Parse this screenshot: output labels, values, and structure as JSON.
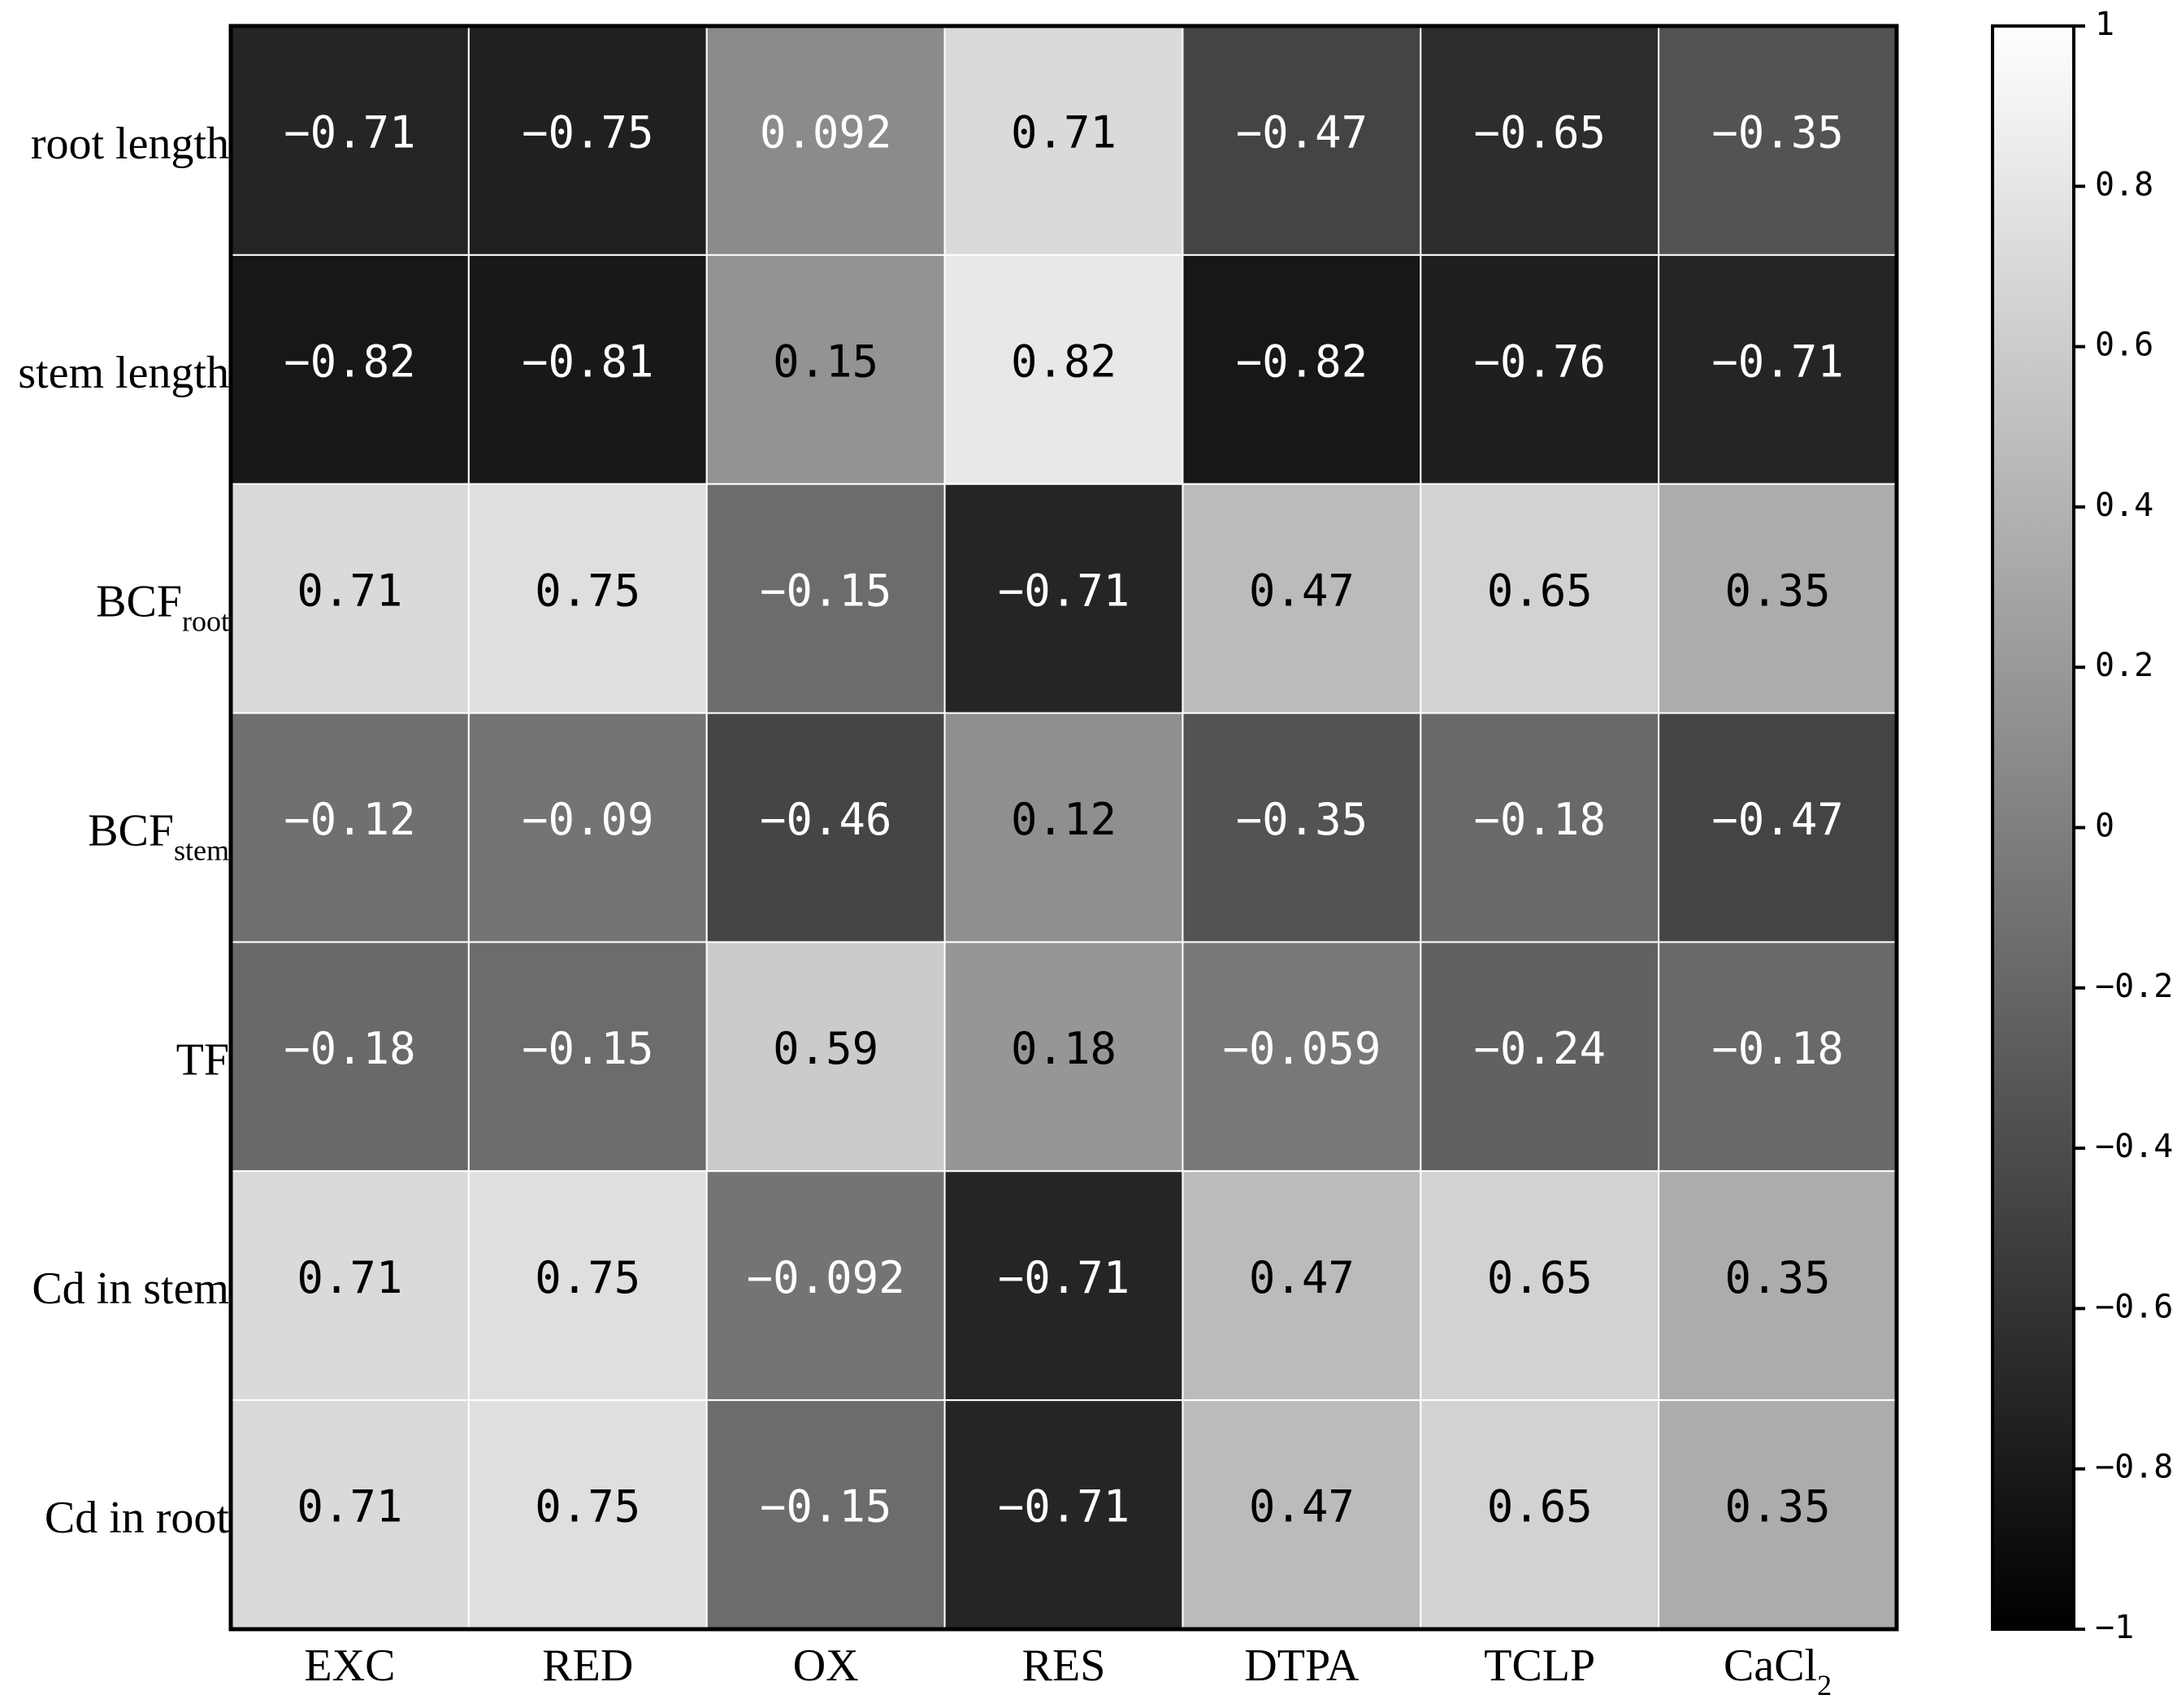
{
  "chart_data": {
    "type": "heatmap",
    "rows": [
      {
        "label": "root length",
        "sub": ""
      },
      {
        "label": "stem length",
        "sub": ""
      },
      {
        "label": "BCF",
        "sub": "root"
      },
      {
        "label": "BCF",
        "sub": "stem"
      },
      {
        "label": "TF",
        "sub": ""
      },
      {
        "label": "Cd in stem",
        "sub": ""
      },
      {
        "label": "Cd in root",
        "sub": ""
      }
    ],
    "columns": [
      {
        "label": "EXC",
        "sub": ""
      },
      {
        "label": "RED",
        "sub": ""
      },
      {
        "label": "OX",
        "sub": ""
      },
      {
        "label": "RES",
        "sub": ""
      },
      {
        "label": "DTPA",
        "sub": ""
      },
      {
        "label": "TCLP",
        "sub": ""
      },
      {
        "label": "CaCl",
        "sub": "2"
      }
    ],
    "values": [
      [
        -0.71,
        -0.75,
        0.092,
        0.71,
        -0.47,
        -0.65,
        -0.35
      ],
      [
        -0.82,
        -0.81,
        0.15,
        0.82,
        -0.82,
        -0.76,
        -0.71
      ],
      [
        0.71,
        0.75,
        -0.15,
        -0.71,
        0.47,
        0.65,
        0.35
      ],
      [
        -0.12,
        -0.09,
        -0.46,
        0.12,
        -0.35,
        -0.18,
        -0.47
      ],
      [
        -0.18,
        -0.15,
        0.59,
        0.18,
        -0.059,
        -0.24,
        -0.18
      ],
      [
        0.71,
        0.75,
        -0.092,
        -0.71,
        0.47,
        0.65,
        0.35
      ],
      [
        0.71,
        0.75,
        -0.15,
        -0.71,
        0.47,
        0.65,
        0.35
      ]
    ],
    "value_labels": [
      [
        "−0.71",
        "−0.75",
        "0.092",
        "0.71",
        "−0.47",
        "−0.65",
        "−0.35"
      ],
      [
        "−0.82",
        "−0.81",
        "0.15",
        "0.82",
        "−0.82",
        "−0.76",
        "−0.71"
      ],
      [
        "0.71",
        "0.75",
        "−0.15",
        "−0.71",
        "0.47",
        "0.65",
        "0.35"
      ],
      [
        "−0.12",
        "−0.09",
        "−0.46",
        "0.12",
        "−0.35",
        "−0.18",
        "−0.47"
      ],
      [
        "−0.18",
        "−0.15",
        "0.59",
        "0.18",
        "−0.059",
        "−0.24",
        "−0.18"
      ],
      [
        "0.71",
        "0.75",
        "−0.092",
        "−0.71",
        "0.47",
        "0.65",
        "0.35"
      ],
      [
        "0.71",
        "0.75",
        "−0.15",
        "−0.71",
        "0.47",
        "0.65",
        "0.35"
      ]
    ],
    "colorbar": {
      "range": [
        -1,
        1
      ],
      "colormap": "gray",
      "low_color": "#000000",
      "high_color": "#ffffff",
      "ticks": [
        1,
        0.8,
        0.6,
        0.4,
        0.2,
        0,
        -0.2,
        -0.4,
        -0.6,
        -0.8,
        -1
      ],
      "tick_labels": [
        "1",
        "0.8",
        "0.6",
        "0.4",
        "0.2",
        "0",
        "−0.2",
        "−0.4",
        "−0.6",
        "−0.8",
        "−1"
      ]
    },
    "title": "",
    "xlabel": "",
    "ylabel": ""
  }
}
